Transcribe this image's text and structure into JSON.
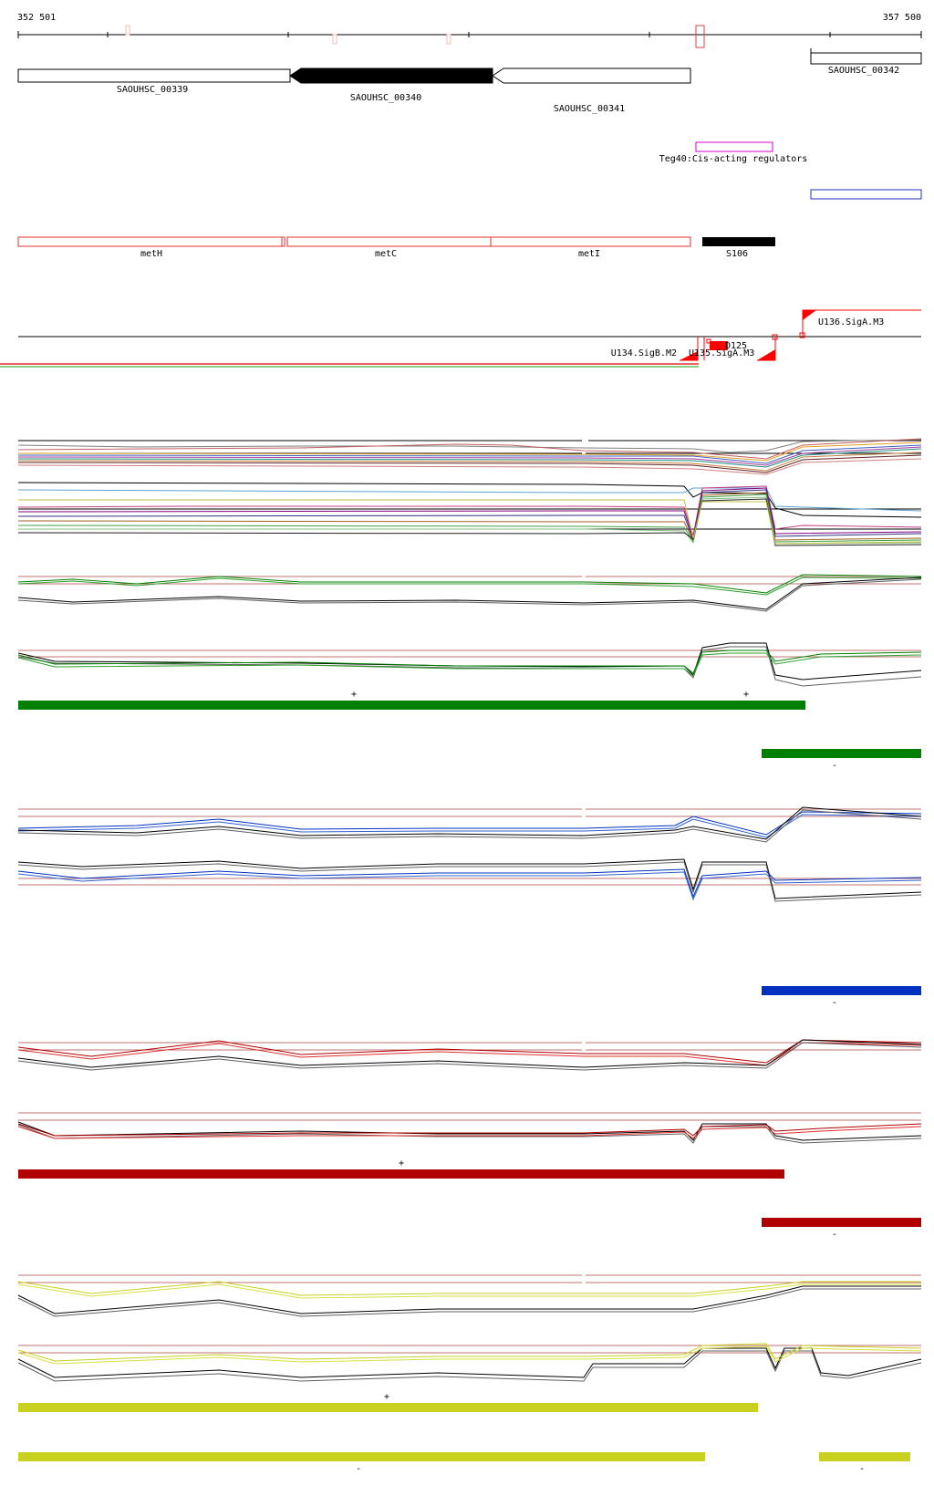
{
  "ruler": {
    "start_label": "352 501",
    "end_label": "357 500",
    "start": 352501,
    "end": 357500
  },
  "genes": [
    {
      "id": "SAOUHSC_00339",
      "start": 352501,
      "end": 353960,
      "strand": "-",
      "fill": "#ffffff"
    },
    {
      "id": "SAOUHSC_00340",
      "start": 353960,
      "end": 355090,
      "strand": "-",
      "fill": "#000000"
    },
    {
      "id": "SAOUHSC_00341",
      "start": 355090,
      "end": 356210,
      "strand": "-",
      "fill": "#ffffff"
    },
    {
      "id": "SAOUHSC_00342",
      "start": 356630,
      "end": 357500,
      "strand": "+",
      "fill": "#ffffff"
    }
  ],
  "regulator": {
    "label": "Teg40:Cis-acting regulators",
    "color": "#d000d0"
  },
  "operon_names": [
    {
      "label": "metH"
    },
    {
      "label": "metC"
    },
    {
      "label": "metI"
    },
    {
      "label": "S106"
    }
  ],
  "tss_labels": {
    "u134": "U134.SigB.M2",
    "u135": "U135.SigA.M3",
    "u136": "U136.SigA.M3",
    "d125": "D125"
  },
  "strand_marks": {
    "green_plus_1": "+",
    "green_plus_2": "+",
    "green_minus": "-",
    "blue_minus": "-",
    "red_plus": "+",
    "red_minus": "-",
    "yellow_plus": "+",
    "yellow_minus_1": "-",
    "yellow_minus_2": "-"
  },
  "colors": {
    "gene_outline": "#000000",
    "operon": "#e03030",
    "s106": "#000000",
    "tss": "#ff0000",
    "condition_green": "#008000",
    "condition_blue": "#0030c0",
    "condition_red": "#b00000",
    "condition_yellow": "#c8d020",
    "ref_line": "#c07070"
  }
}
